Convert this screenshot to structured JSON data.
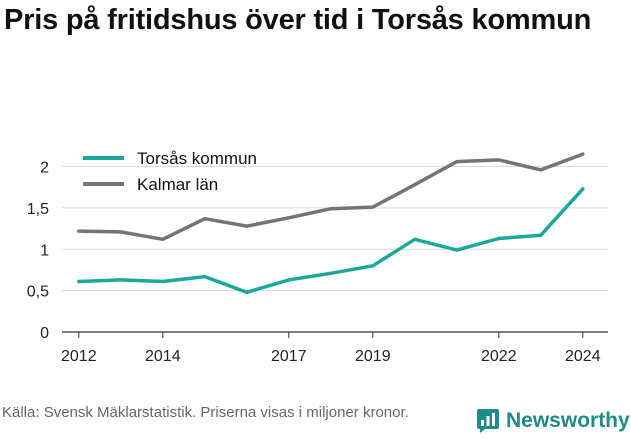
{
  "title": "Pris på fritidshus över tid i Torsås kommun",
  "source": "Källa: Svensk Mäklarstatistik. Priserna visas i miljoner kronor.",
  "brand": {
    "name": "Newsworthy",
    "icon": "newsworthy-chart-icon",
    "color": "#1f8a8a"
  },
  "chart_data": {
    "type": "line",
    "title": "Pris på fritidshus över tid i Torsås kommun",
    "xlabel": "",
    "ylabel": "",
    "x": [
      2012,
      2013,
      2014,
      2015,
      2016,
      2017,
      2018,
      2019,
      2020,
      2021,
      2022,
      2023,
      2024
    ],
    "xticks": [
      2012,
      2014,
      2017,
      2019,
      2022,
      2024
    ],
    "yticks": [
      {
        "value": 0,
        "label": "0"
      },
      {
        "value": 0.5,
        "label": "0,5"
      },
      {
        "value": 1,
        "label": "1"
      },
      {
        "value": 1.5,
        "label": "1,5"
      },
      {
        "value": 2,
        "label": "2"
      }
    ],
    "xlim": [
      2011.6,
      2024.6
    ],
    "ylim": [
      0,
      2.2
    ],
    "grid": "horizontal",
    "legend_position": "top-left",
    "series": [
      {
        "name": "Torsås kommun",
        "color": "#1aa89a",
        "values": [
          0.61,
          0.63,
          0.61,
          0.67,
          0.48,
          0.63,
          0.71,
          0.8,
          1.12,
          0.99,
          1.13,
          1.17,
          1.73
        ]
      },
      {
        "name": "Kalmar län",
        "color": "#737378",
        "values": [
          1.22,
          1.21,
          1.12,
          1.37,
          1.28,
          1.38,
          1.49,
          1.51,
          1.78,
          2.06,
          2.08,
          1.96,
          2.15
        ]
      }
    ]
  }
}
